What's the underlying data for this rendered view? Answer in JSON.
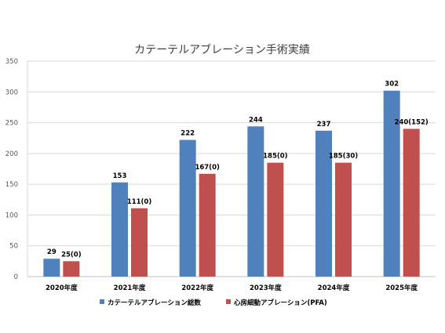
{
  "chart_data": {
    "type": "bar",
    "title": "カテーテルアブレーション手術実績",
    "categories": [
      "2020年度",
      "2021年度",
      "2022年度",
      "2023年度",
      "2024年度",
      "2025年度"
    ],
    "ylim": [
      0,
      350
    ],
    "yticks": [
      0,
      50,
      100,
      150,
      200,
      250,
      300,
      350
    ],
    "grid": true,
    "legend_position": "bottom",
    "series": [
      {
        "name": "カテーテルアブレーション総数",
        "color": "#4F81BD",
        "values": [
          29,
          153,
          222,
          244,
          237,
          302
        ],
        "labels": [
          "29",
          "153",
          "222",
          "244",
          "237",
          "302"
        ]
      },
      {
        "name": "心房細動アブレーション(PFA)",
        "color": "#C0504D",
        "values": [
          25,
          111,
          167,
          185,
          185,
          240
        ],
        "labels": [
          "25(0)",
          "111(0)",
          "167(0)",
          "185(0)",
          "185(30)",
          "240(152)"
        ]
      }
    ]
  }
}
